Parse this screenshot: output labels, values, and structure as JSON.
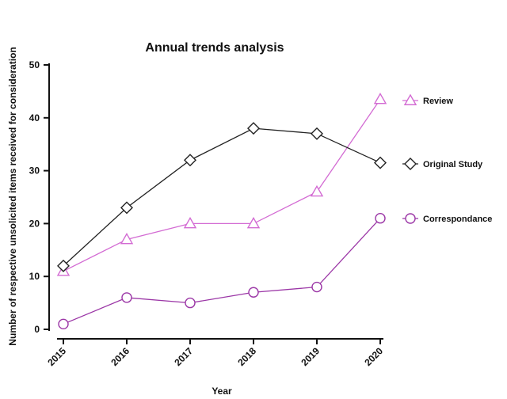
{
  "chart_data": {
    "type": "line",
    "title": "Annual trends analysis",
    "xlabel": "Year",
    "ylabel": "Number of respective unsolicited items received for consideration",
    "x": [
      "2015",
      "2016",
      "2017",
      "2018",
      "2019",
      "2020"
    ],
    "ylim": [
      0,
      50
    ],
    "yticks": [
      0,
      10,
      20,
      30,
      40,
      50
    ],
    "grid": false,
    "legend_position": "right",
    "series": [
      {
        "name": "Review",
        "values": [
          11,
          17,
          20,
          20,
          26,
          43.5
        ],
        "color": "#d36bd3",
        "marker": "triangle"
      },
      {
        "name": "Original Study",
        "values": [
          12,
          23,
          32,
          38,
          37,
          31.5
        ],
        "color": "#222222",
        "marker": "diamond"
      },
      {
        "name": "Correspondance",
        "values": [
          1,
          6,
          5,
          7,
          8,
          21
        ],
        "color": "#9b36a6",
        "marker": "circle"
      }
    ]
  }
}
